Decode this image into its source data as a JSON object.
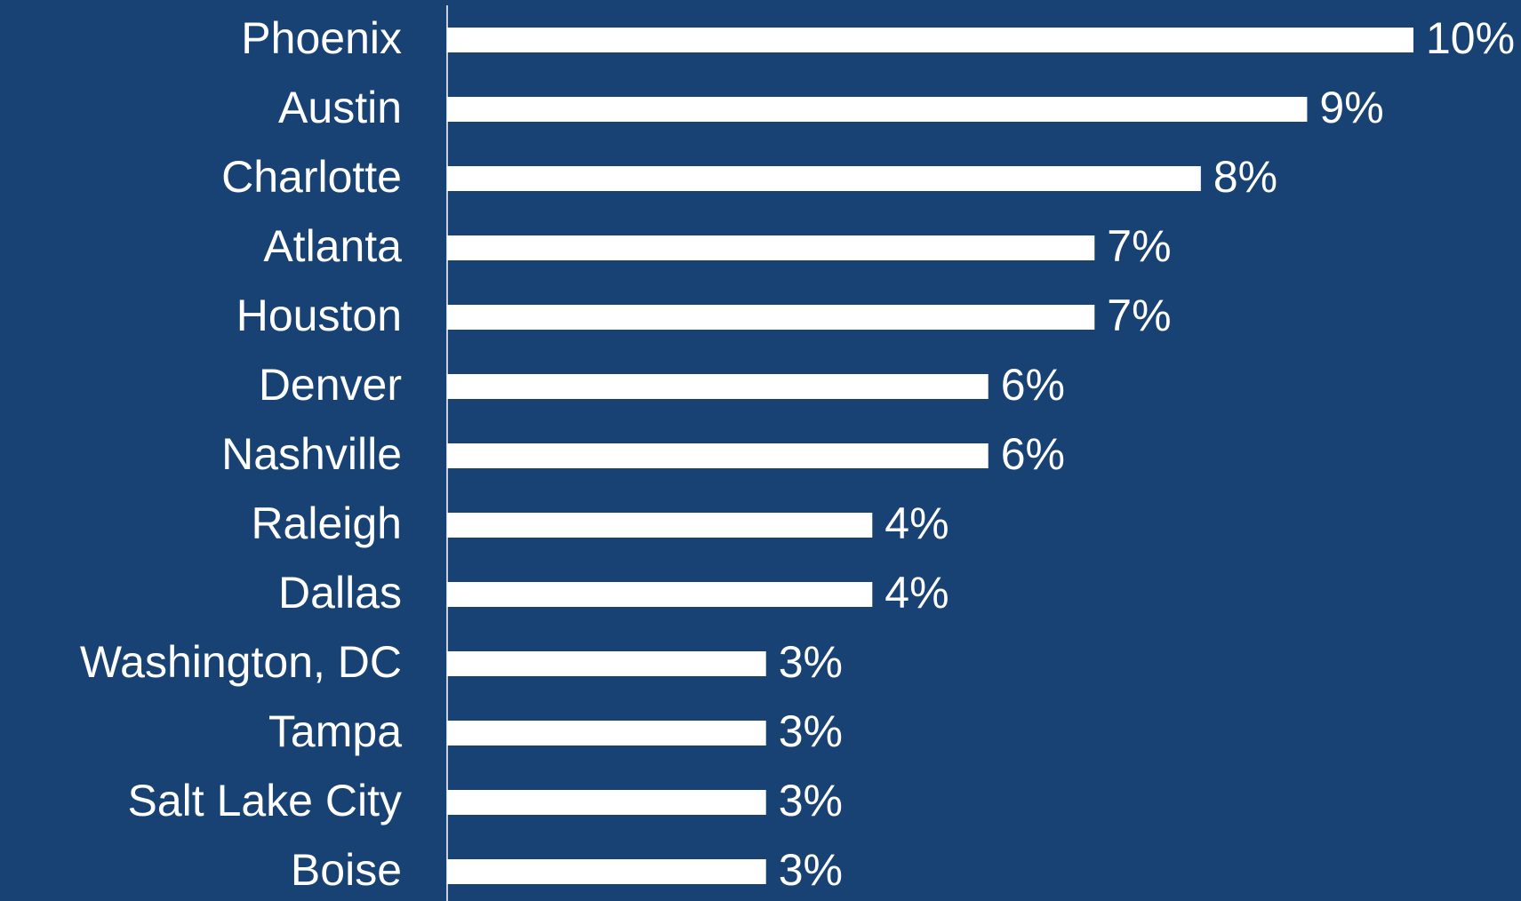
{
  "chart_data": {
    "type": "barh",
    "categories": [
      "Phoenix",
      "Austin",
      "Charlotte",
      "Atlanta",
      "Houston",
      "Denver",
      "Nashville",
      "Raleigh",
      "Dallas",
      "Washington, DC",
      "Tampa",
      "Salt Lake City",
      "Boise"
    ],
    "values": [
      10,
      8.9,
      7.8,
      6.7,
      6.7,
      5.6,
      5.6,
      4.4,
      4.4,
      3.3,
      3.3,
      3.3,
      3.3
    ],
    "value_labels": [
      "10%",
      "9%",
      "8%",
      "7%",
      "7%",
      "6%",
      "6%",
      "4%",
      "4%",
      "3%",
      "3%",
      "3%",
      "3%"
    ],
    "color": "#ffffff",
    "background": "#184273",
    "xlim": [
      0,
      10
    ]
  }
}
